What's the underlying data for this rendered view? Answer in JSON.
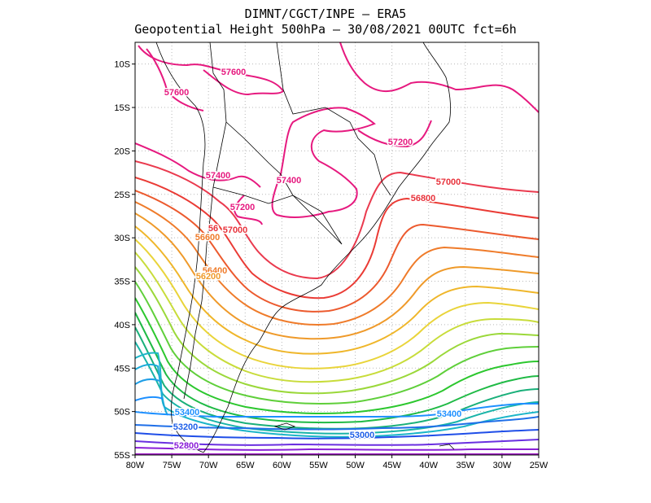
{
  "header": {
    "line1": "DIMNT/CGCT/INPE –  ERA5",
    "line2": "Geopotential Height 500hPa –  30/08/2021 00UTC fct=6h"
  },
  "chart_data": {
    "type": "contour_map",
    "variable": "Geopotential Height 500hPa",
    "lon_range": [
      -80,
      -25
    ],
    "lat_range": [
      -55,
      -7.5
    ],
    "x_ticks": [
      "80W",
      "75W",
      "70W",
      "65W",
      "60W",
      "55W",
      "50W",
      "45W",
      "40W",
      "35W",
      "30W",
      "25W"
    ],
    "y_ticks": [
      "10S",
      "15S",
      "20S",
      "25S",
      "30S",
      "35S",
      "40S",
      "45S",
      "50S",
      "55S"
    ],
    "contour_labels": [
      {
        "text": "57600",
        "color": "#e6197f"
      },
      {
        "text": "57600",
        "color": "#e6197f"
      },
      {
        "text": "57400",
        "color": "#e6197f"
      },
      {
        "text": "57400",
        "color": "#e6197f"
      },
      {
        "text": "57200",
        "color": "#e6197f"
      },
      {
        "text": "57200",
        "color": "#e6197f"
      },
      {
        "text": "57000",
        "color": "#e8333c"
      },
      {
        "text": "57000",
        "color": "#e8333c"
      },
      {
        "text": "56800",
        "color": "#e8333c"
      },
      {
        "text": "56600",
        "color": "#ef7b2a"
      },
      {
        "text": "56",
        "color": "#e8333c"
      },
      {
        "text": "56400",
        "color": "#ef7b2a"
      },
      {
        "text": "56200",
        "color": "#ef9a2a"
      },
      {
        "text": "53400",
        "color": "#1e90ff"
      },
      {
        "text": "53400",
        "color": "#1e90ff"
      },
      {
        "text": "53200",
        "color": "#1f5fe8"
      },
      {
        "text": "53000",
        "color": "#1f5fe8"
      },
      {
        "text": "52800",
        "color": "#8a1ed8"
      }
    ]
  }
}
